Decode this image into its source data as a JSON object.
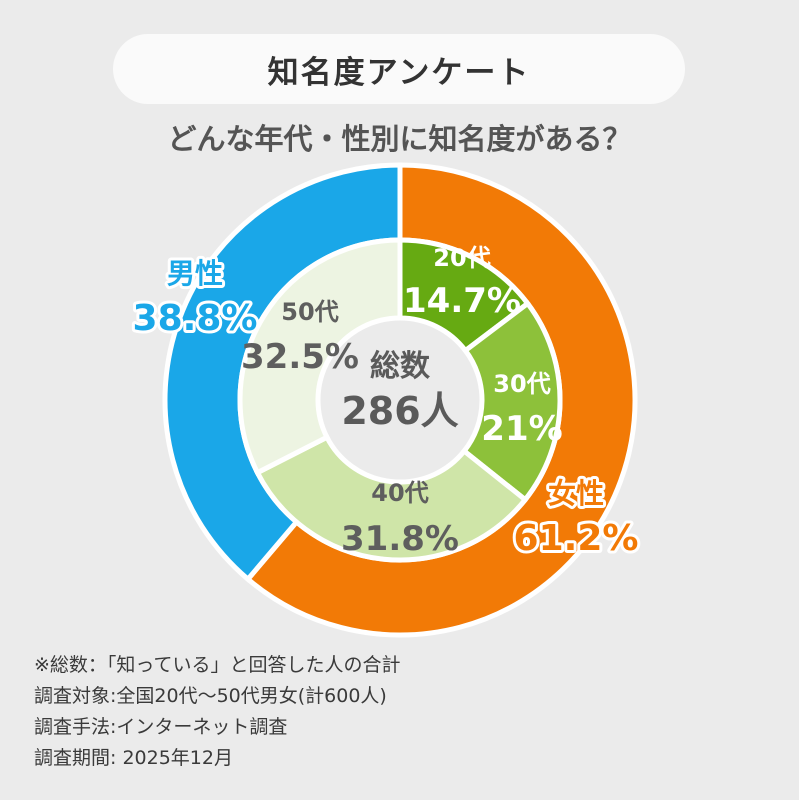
{
  "header": {
    "title": "知名度アンケート",
    "subtitle": "どんな年代・性別に知名度がある？"
  },
  "center": {
    "label": "総数",
    "value": "286人"
  },
  "colors": {
    "male": "#1aa7e8",
    "female": "#f27a06",
    "age20": "#66aa12",
    "age30": "#8dc13a",
    "age40": "#cfe5a8",
    "age50": "#edf4e2",
    "background": "#ebebeb"
  },
  "chart_data": [
    {
      "type": "pie",
      "name": "性別",
      "categories": [
        "女性",
        "男性"
      ],
      "values": [
        61.2,
        38.8
      ],
      "labels": [
        "61.2%",
        "38.8%"
      ]
    },
    {
      "type": "pie",
      "name": "年代",
      "categories": [
        "20代",
        "30代",
        "40代",
        "50代"
      ],
      "values": [
        14.7,
        21,
        31.8,
        32.5
      ],
      "labels": [
        "14.7%",
        "21%",
        "31.8%",
        "32.5%"
      ]
    }
  ],
  "footnotes": [
    "※総数：「知っている」と回答した人の合計",
    "調査対象:全国20代～50代男女(計600人)",
    "調査手法:インターネット調査",
    "調査期間: 2025年12月"
  ]
}
